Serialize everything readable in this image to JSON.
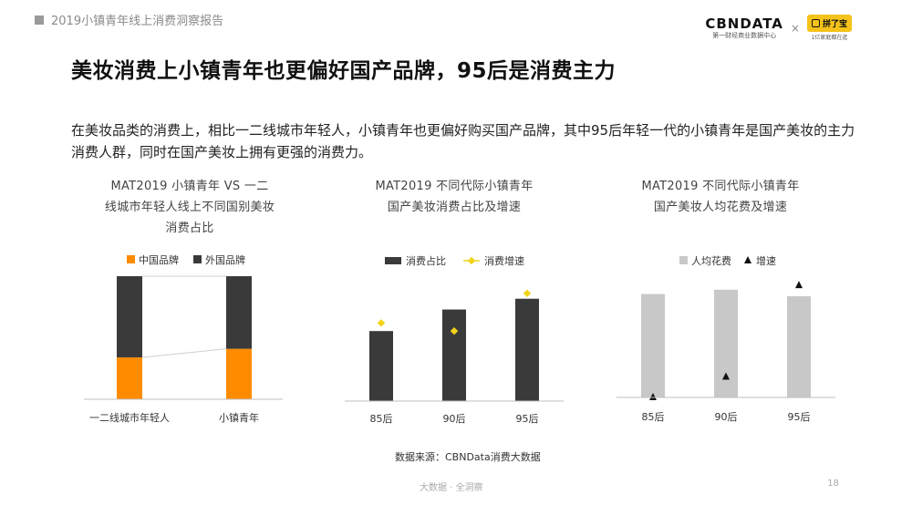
{
  "header": {
    "report_title": "2019小镇青年线上消费洞察报告",
    "brand_name": "CBNDATA",
    "brand_sub": "第一财经商业数据中心",
    "times": "×",
    "partner_name": "拼了宝",
    "partner_slogan": "1亿家庭都在逛"
  },
  "page_title": "美妆消费上小镇青年也更偏好国产品牌，95后是消费主力",
  "intro": "在美妆品类的消费上，相比一二线城市年轻人，小镇青年也更偏好购买国产品牌，其中95后年轻一代的小镇青年是国产美妆的主力消费人群，同时在国产美妆上拥有更强的消费力。",
  "charts": {
    "c1": {
      "title_l1": "MAT2019 小镇青年 VS 一二",
      "title_l2": "线城市年轻人线上不同国别美妆",
      "title_l3": "消费占比"
    },
    "c2": {
      "title_l1": "MAT2019 不同代际小镇青年",
      "title_l2": "国产美妆消费占比及增速"
    },
    "c3": {
      "title_l1": "MAT2019 不同代际小镇青年",
      "title_l2": "国产美妆人均花费及增速"
    }
  },
  "colors": {
    "orange": "#ff8c00",
    "dark": "#3a3a3a",
    "yellow": "#f2d31b",
    "gray_bar": "#c8c8c8",
    "marker": "#111111",
    "axis": "#bfbfbf"
  },
  "chart_data": [
    {
      "type": "bar",
      "stacked": true,
      "percent": true,
      "categories": [
        "一二线城市年轻人",
        "小镇青年"
      ],
      "series": [
        {
          "name": "中国品牌",
          "values": [
            34,
            41
          ]
        },
        {
          "name": "外国品牌",
          "values": [
            66,
            59
          ]
        }
      ],
      "legend": "top-center",
      "ylim": [
        0,
        100
      ]
    },
    {
      "type": "bar",
      "categories": [
        "85后",
        "90后",
        "95后"
      ],
      "series": [
        {
          "name": "消费占比",
          "type": "bar",
          "values": [
            26,
            34,
            38
          ]
        },
        {
          "name": "消费增速",
          "type": "scatter",
          "values": [
            29,
            26,
            40
          ]
        }
      ],
      "legend": "top-center",
      "ylim": [
        0,
        44
      ]
    },
    {
      "type": "bar",
      "categories": [
        "85后",
        "90后",
        "95后"
      ],
      "series": [
        {
          "name": "人均花费",
          "type": "bar",
          "values": [
            96,
            100,
            94
          ]
        },
        {
          "name": "增速",
          "type": "scatter",
          "values": [
            0,
            19,
            104
          ]
        }
      ],
      "legend": "top-center",
      "ylim": [
        0,
        110
      ]
    }
  ],
  "source": "数据来源：CBNData消费大数据",
  "footer": "大数据 · 全洞察",
  "page_number": "18"
}
